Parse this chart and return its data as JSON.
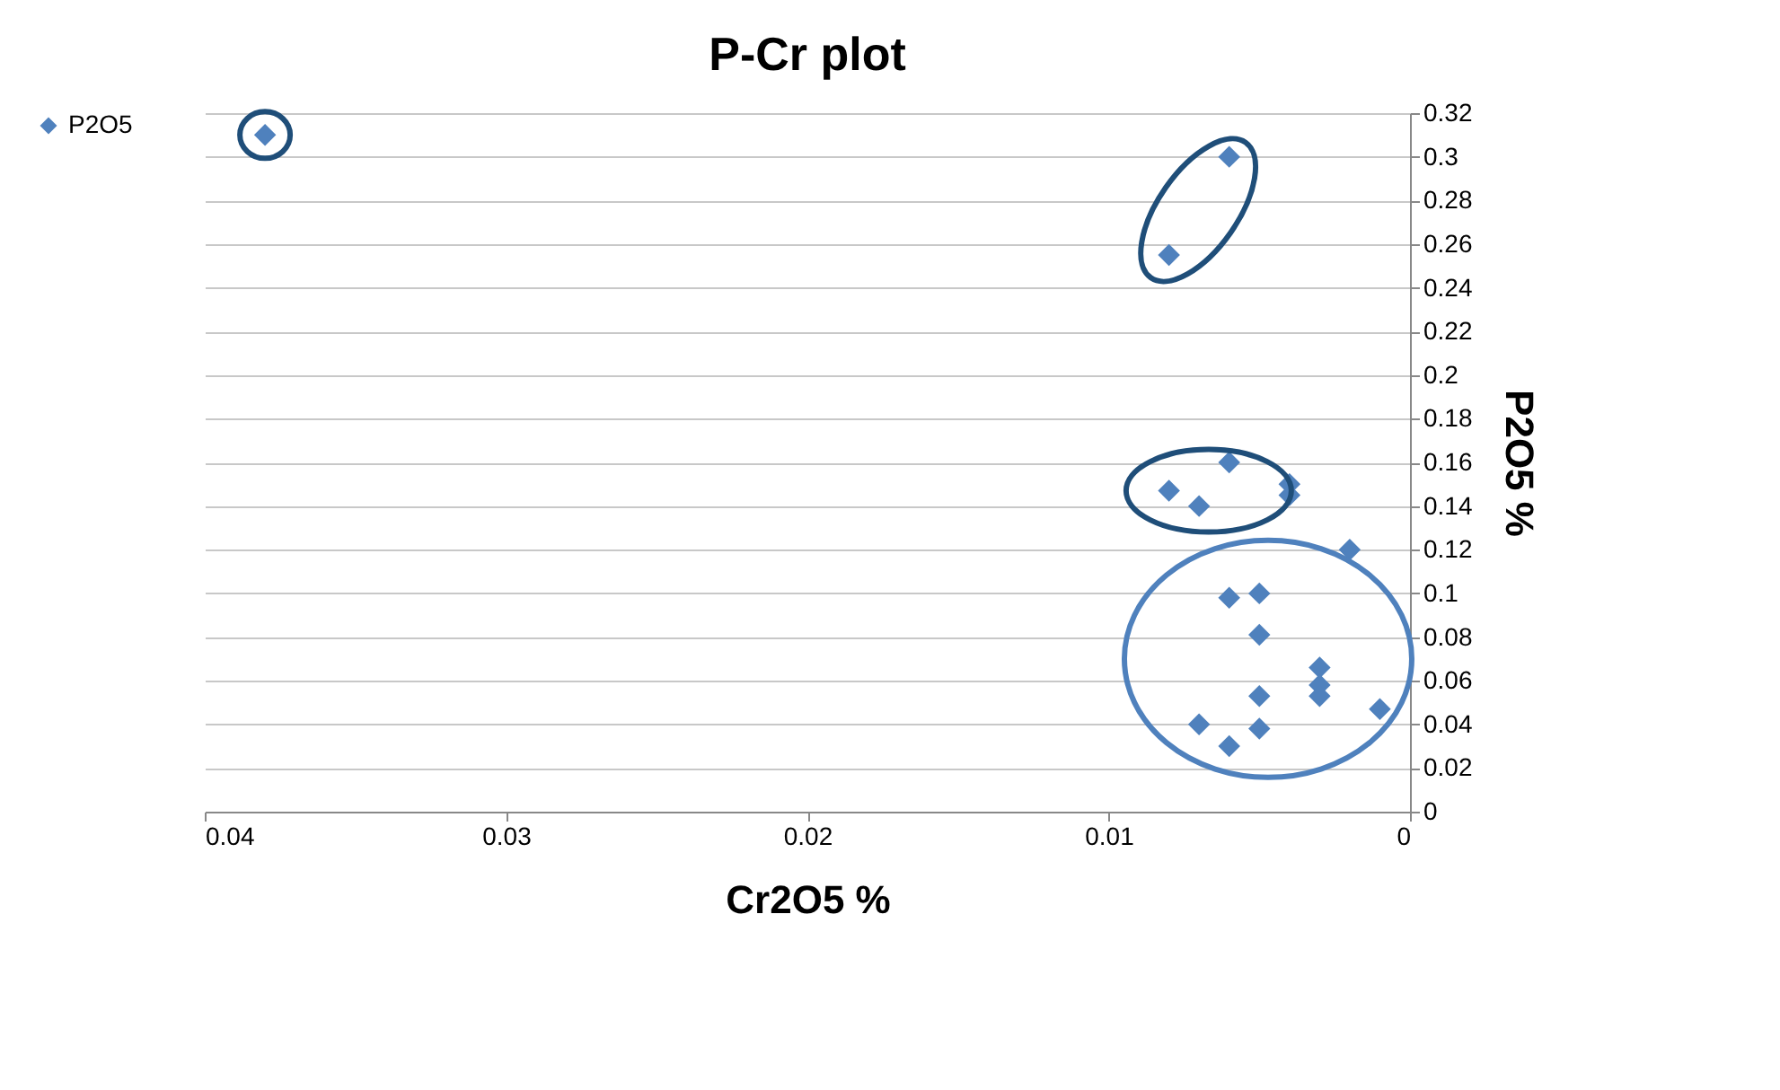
{
  "chart_data": {
    "type": "scatter",
    "title": "P-Cr plot",
    "xlabel": "Cr2O5 %",
    "ylabel": "P2O5 %",
    "xlim": [
      0.04,
      0
    ],
    "xticks": [
      0.04,
      0.03,
      0.02,
      0.01,
      0
    ],
    "ylim": [
      0,
      0.32
    ],
    "yticks": [
      0,
      0.02,
      0.04,
      0.06,
      0.08,
      0.1,
      0.12,
      0.14,
      0.16,
      0.18,
      0.2,
      0.22,
      0.24,
      0.26,
      0.28,
      0.3,
      0.32
    ],
    "grid": "y",
    "legend": "left",
    "marker": "diamond",
    "series": [
      {
        "name": "P2O5",
        "color": "#4f81bd",
        "x": [
          0.038,
          0.006,
          0.008,
          0.008,
          0.007,
          0.006,
          0.004,
          0.004,
          0.002,
          0.006,
          0.005,
          0.005,
          0.003,
          0.003,
          0.003,
          0.001,
          0.005,
          0.007,
          0.005,
          0.006
        ],
        "values": [
          0.31,
          0.3,
          0.255,
          0.147,
          0.14,
          0.16,
          0.15,
          0.145,
          0.12,
          0.098,
          0.1,
          0.081,
          0.066,
          0.058,
          0.053,
          0.047,
          0.053,
          0.04,
          0.038,
          0.03
        ]
      }
    ]
  }
}
